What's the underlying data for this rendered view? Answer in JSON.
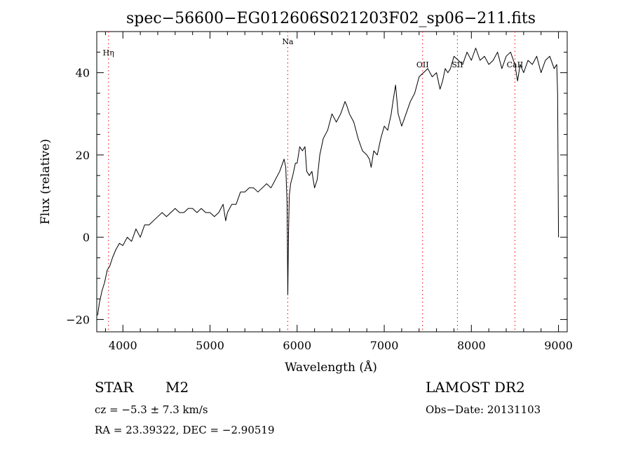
{
  "chart_data": {
    "type": "line",
    "title": "spec−56600−EG012606S021203F02_sp06−211.fits",
    "xlabel": "Wavelength (Å)",
    "ylabel": "Flux (relative)",
    "xlim": [
      3700,
      9100
    ],
    "ylim": [
      -23,
      50
    ],
    "x_ticks": [
      4000,
      5000,
      6000,
      7000,
      8000,
      9000
    ],
    "x_tick_labels": [
      "4000",
      "5000",
      "6000",
      "7000",
      "8000",
      "9000"
    ],
    "y_ticks": [
      -20,
      0,
      20,
      40
    ],
    "y_tick_labels": [
      "−20",
      "0",
      "20",
      "40"
    ],
    "grid": false,
    "line_color": "#000000",
    "marker_color": "#ff0000",
    "lines": [
      {
        "label": "Hη",
        "wavelength": 3835
      },
      {
        "label": "Na",
        "wavelength": 5893
      },
      {
        "label": "OII",
        "wavelength": 7440
      },
      {
        "label": "SII",
        "wavelength": 7840
      },
      {
        "label": "CaII",
        "wavelength": 8500
      }
    ],
    "series": [
      {
        "x": [
          3710,
          3730,
          3760,
          3790,
          3820,
          3850,
          3880,
          3920,
          3960,
          4000,
          4050,
          4100,
          4150,
          4200,
          4250,
          4300,
          4350,
          4400,
          4450,
          4500,
          4550,
          4600,
          4650,
          4700,
          4750,
          4800,
          4850,
          4900,
          4950,
          5000,
          5050,
          5100,
          5150,
          5180,
          5200,
          5250,
          5300,
          5350,
          5400,
          5450,
          5500,
          5550,
          5600,
          5650,
          5700,
          5750,
          5800,
          5850,
          5870,
          5885,
          5893,
          5900,
          5910,
          5925,
          5950,
          5980,
          6000,
          6030,
          6060,
          6090,
          6110,
          6140,
          6170,
          6200,
          6230,
          6260,
          6300,
          6350,
          6400,
          6450,
          6500,
          6550,
          6570,
          6600,
          6650,
          6700,
          6750,
          6800,
          6830,
          6850,
          6880,
          6920,
          6960,
          7000,
          7040,
          7080,
          7100,
          7130,
          7160,
          7200,
          7250,
          7300,
          7350,
          7400,
          7450,
          7500,
          7550,
          7600,
          7640,
          7670,
          7700,
          7730,
          7760,
          7800,
          7850,
          7900,
          7950,
          8000,
          8050,
          8100,
          8150,
          8200,
          8250,
          8300,
          8350,
          8400,
          8450,
          8500,
          8530,
          8560,
          8600,
          8650,
          8700,
          8750,
          8800,
          8850,
          8900,
          8950,
          8980,
          8990,
          9000
        ],
        "y": [
          -19,
          -16,
          -13,
          -11,
          -8,
          -7,
          -5,
          -3,
          -1.5,
          -2,
          0,
          -1,
          2,
          0,
          3,
          3,
          4,
          5,
          6,
          5,
          6,
          7,
          6,
          6,
          7,
          7,
          6,
          7,
          6,
          6,
          5,
          6,
          8,
          4,
          6,
          8,
          8,
          11,
          11,
          12,
          12,
          11,
          12,
          13,
          12,
          14,
          16,
          19,
          17,
          8,
          -14,
          0,
          10,
          13,
          15,
          18,
          18,
          22,
          21,
          22,
          16,
          15,
          16,
          12,
          14,
          20,
          24,
          26,
          30,
          28,
          30,
          33,
          32,
          30,
          28,
          24,
          21,
          20,
          19,
          17,
          21,
          20,
          24,
          27,
          26,
          30,
          33,
          37,
          30,
          27,
          30,
          33,
          35,
          39,
          40,
          41,
          39,
          40,
          36,
          38,
          41,
          40,
          41,
          44,
          43,
          42,
          45,
          43,
          46,
          43,
          44,
          42,
          43,
          45,
          41,
          44,
          45,
          42,
          38,
          42,
          40,
          43,
          42,
          44,
          40,
          43,
          44,
          41,
          42,
          35,
          0
        ],
        "color": "#000000"
      }
    ]
  },
  "footer": {
    "class_label": "STAR",
    "subclass": "M2",
    "redshift_text": "cz = −5.3 ± 7.3 km/s",
    "coords_text": "RA =  23.39322, DEC =  −2.90519",
    "survey": "LAMOST DR2",
    "obs_date": "Obs−Date: 20131103"
  }
}
